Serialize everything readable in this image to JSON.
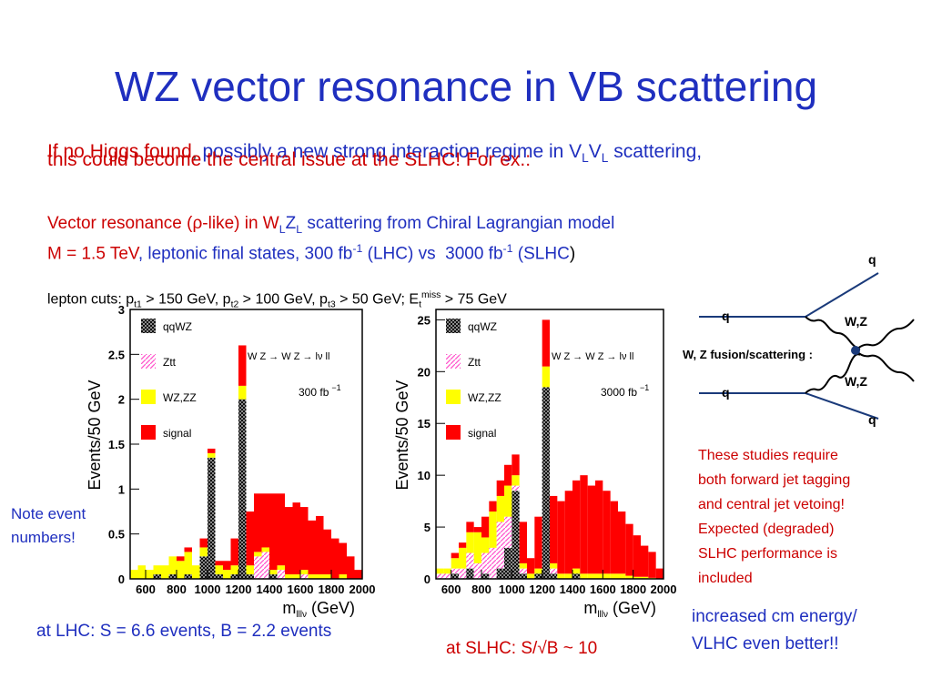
{
  "title": "WZ vector resonance in VB scattering",
  "intro": [
    "If no Higgs found",
    ",",
    " possibly a new strong interaction regime in V",
    "L",
    "V",
    "L",
    " scattering,",
    "this could become the central issue at the SLHC! For ex.:"
  ],
  "model": [
    "Vector resonance (",
    "ρ",
    "-like) in W",
    "L",
    "Z",
    "L",
    " scattering from Chiral Lagrangian model",
    "M = 1.5 TeV",
    ", leptonic final states, 300 fb",
    "-1",
    " (LHC) vs  3000 fb",
    "-1",
    " (",
    "SLHC",
    ")"
  ],
  "cuts": [
    "lepton cuts: p",
    "t1",
    " > 150 GeV, p",
    "t2",
    " > 100 GeV, p",
    "t3",
    " > 50 GeV; E",
    "t",
    "miss",
    " > 75 GeV"
  ],
  "note": [
    "Note event",
    "numbers!"
  ],
  "caption_lhc": "at LHC: S = 6.6 events, B = 2.2 events",
  "caption_slhc": "at SLHC: S/√B ~ 10",
  "studies": [
    "These studies require",
    "both forward jet tagging",
    "and central jet vetoing!",
    "Expected (degraded)",
    "SLHC performance is",
    "included"
  ],
  "vlhc": [
    "increased cm energy/",
    "VLHC even better!!"
  ],
  "diagram": {
    "label": "W, Z fusion/scattering :",
    "quarks": [
      "q",
      "q",
      "q",
      "q"
    ],
    "bosons": [
      "W,Z",
      "W,Z"
    ]
  },
  "chart_data": [
    {
      "type": "histogram",
      "ylabel": "Events/50 GeV",
      "xlabel": [
        "m",
        "lllν",
        " (GeV)"
      ],
      "annotation": "W Z → W Z → lν ll",
      "luminosity": [
        "300 fb",
        "−1"
      ],
      "bins": [
        500,
        550,
        600,
        650,
        700,
        750,
        800,
        850,
        900,
        950,
        1000,
        1050,
        1100,
        1150,
        1200,
        1250,
        1300,
        1350,
        1400,
        1450,
        1500,
        1550,
        1600,
        1650,
        1700,
        1750,
        1800,
        1850,
        1900,
        1950,
        2000
      ],
      "xlim": [
        500,
        2000
      ],
      "xticks": [
        600,
        800,
        1000,
        1200,
        1400,
        1600,
        1800,
        2000
      ],
      "ylim": [
        0,
        3
      ],
      "yticks": [
        0,
        0.5,
        1,
        1.5,
        2,
        2.5,
        3
      ],
      "series": [
        {
          "name": "qqWZ",
          "color": "#444444",
          "pattern": "crosshatch",
          "values": [
            0,
            0,
            0,
            0.05,
            0,
            0.05,
            0,
            0.05,
            0,
            0.25,
            1.35,
            0.05,
            0,
            0.05,
            2.0,
            0.05,
            0,
            0,
            0.05,
            0,
            0,
            0,
            0,
            0,
            0,
            0,
            0,
            0,
            0,
            0
          ]
        },
        {
          "name": "Ztt",
          "color": "#ff55cc",
          "pattern": "hatch",
          "values": [
            0,
            0,
            0,
            0,
            0,
            0,
            0,
            0,
            0,
            0,
            0,
            0,
            0,
            0,
            0,
            0,
            0.25,
            0.3,
            0,
            0.1,
            0,
            0,
            0.05,
            0,
            0,
            0,
            0,
            0,
            0,
            0
          ]
        },
        {
          "name": "WZ,ZZ",
          "color": "#ffff00",
          "values": [
            0.1,
            0.15,
            0.1,
            0.1,
            0.15,
            0.2,
            0.2,
            0.25,
            0.15,
            0.1,
            0.05,
            0.1,
            0.1,
            0.1,
            0.15,
            0.1,
            0.05,
            0.05,
            0.05,
            0.05,
            0.05,
            0.05,
            0.05,
            0.05,
            0.05,
            0.05,
            0,
            0.05,
            0,
            0
          ]
        },
        {
          "name": "signal",
          "color": "#ff0000",
          "values": [
            0,
            0,
            0,
            0,
            0,
            0,
            0.05,
            0.05,
            0,
            0.1,
            0.05,
            0.05,
            0.1,
            0.3,
            0.45,
            0.6,
            0.65,
            0.6,
            0.85,
            0.8,
            0.75,
            0.8,
            0.7,
            0.6,
            0.65,
            0.5,
            0.45,
            0.35,
            0.25,
            0.1
          ]
        }
      ]
    },
    {
      "type": "histogram",
      "ylabel": "Events/50 GeV",
      "xlabel": [
        "m",
        "lllν",
        " (GeV)"
      ],
      "annotation": "W Z → W Z → lν ll",
      "luminosity": [
        "3000 fb",
        "−1"
      ],
      "bins": [
        500,
        550,
        600,
        650,
        700,
        750,
        800,
        850,
        900,
        950,
        1000,
        1050,
        1100,
        1150,
        1200,
        1250,
        1300,
        1350,
        1400,
        1450,
        1500,
        1550,
        1600,
        1650,
        1700,
        1750,
        1800,
        1850,
        1900,
        1950,
        2000
      ],
      "xlim": [
        500,
        2000
      ],
      "xticks": [
        600,
        800,
        1000,
        1200,
        1400,
        1600,
        1800,
        2000
      ],
      "ylim": [
        0,
        26
      ],
      "yticks": [
        0,
        5,
        10,
        15,
        20,
        25
      ],
      "series": [
        {
          "name": "qqWZ",
          "color": "#444444",
          "pattern": "crosshatch",
          "values": [
            0,
            0,
            0.5,
            0,
            1,
            0,
            0.5,
            0,
            1,
            3,
            8.5,
            0.5,
            0,
            0.5,
            18.5,
            0.5,
            0,
            0,
            0.5,
            0,
            0,
            0,
            0,
            0,
            0,
            0,
            0,
            0,
            0,
            0
          ]
        },
        {
          "name": "Ztt",
          "color": "#ff55cc",
          "pattern": "hatch",
          "values": [
            0.5,
            0.5,
            0.5,
            1,
            1.5,
            1.5,
            2,
            3,
            4.5,
            3,
            0.5,
            0.5,
            0,
            0,
            0,
            0.5,
            0,
            0,
            0,
            0,
            0,
            0,
            0,
            0,
            0,
            0,
            0,
            0,
            0,
            0
          ]
        },
        {
          "name": "WZ,ZZ",
          "color": "#ffff00",
          "values": [
            0.5,
            0.5,
            1,
            2,
            2,
            3,
            1.5,
            3.5,
            2.5,
            3,
            1,
            0.5,
            0.5,
            0.5,
            2,
            0.5,
            0.5,
            0.5,
            0.5,
            0.5,
            0.5,
            0.5,
            0.5,
            0.5,
            0.5,
            0.3,
            0.2,
            0.2,
            0.1,
            0
          ]
        },
        {
          "name": "signal",
          "color": "#ff0000",
          "values": [
            0,
            0,
            0.5,
            0.5,
            1,
            0.5,
            2,
            1,
            1.5,
            2,
            2,
            4,
            1.5,
            5,
            4.5,
            6.5,
            7,
            8,
            8.5,
            9.5,
            8.5,
            9,
            8,
            7,
            6,
            5,
            4,
            3,
            2.5,
            1
          ]
        }
      ]
    }
  ]
}
